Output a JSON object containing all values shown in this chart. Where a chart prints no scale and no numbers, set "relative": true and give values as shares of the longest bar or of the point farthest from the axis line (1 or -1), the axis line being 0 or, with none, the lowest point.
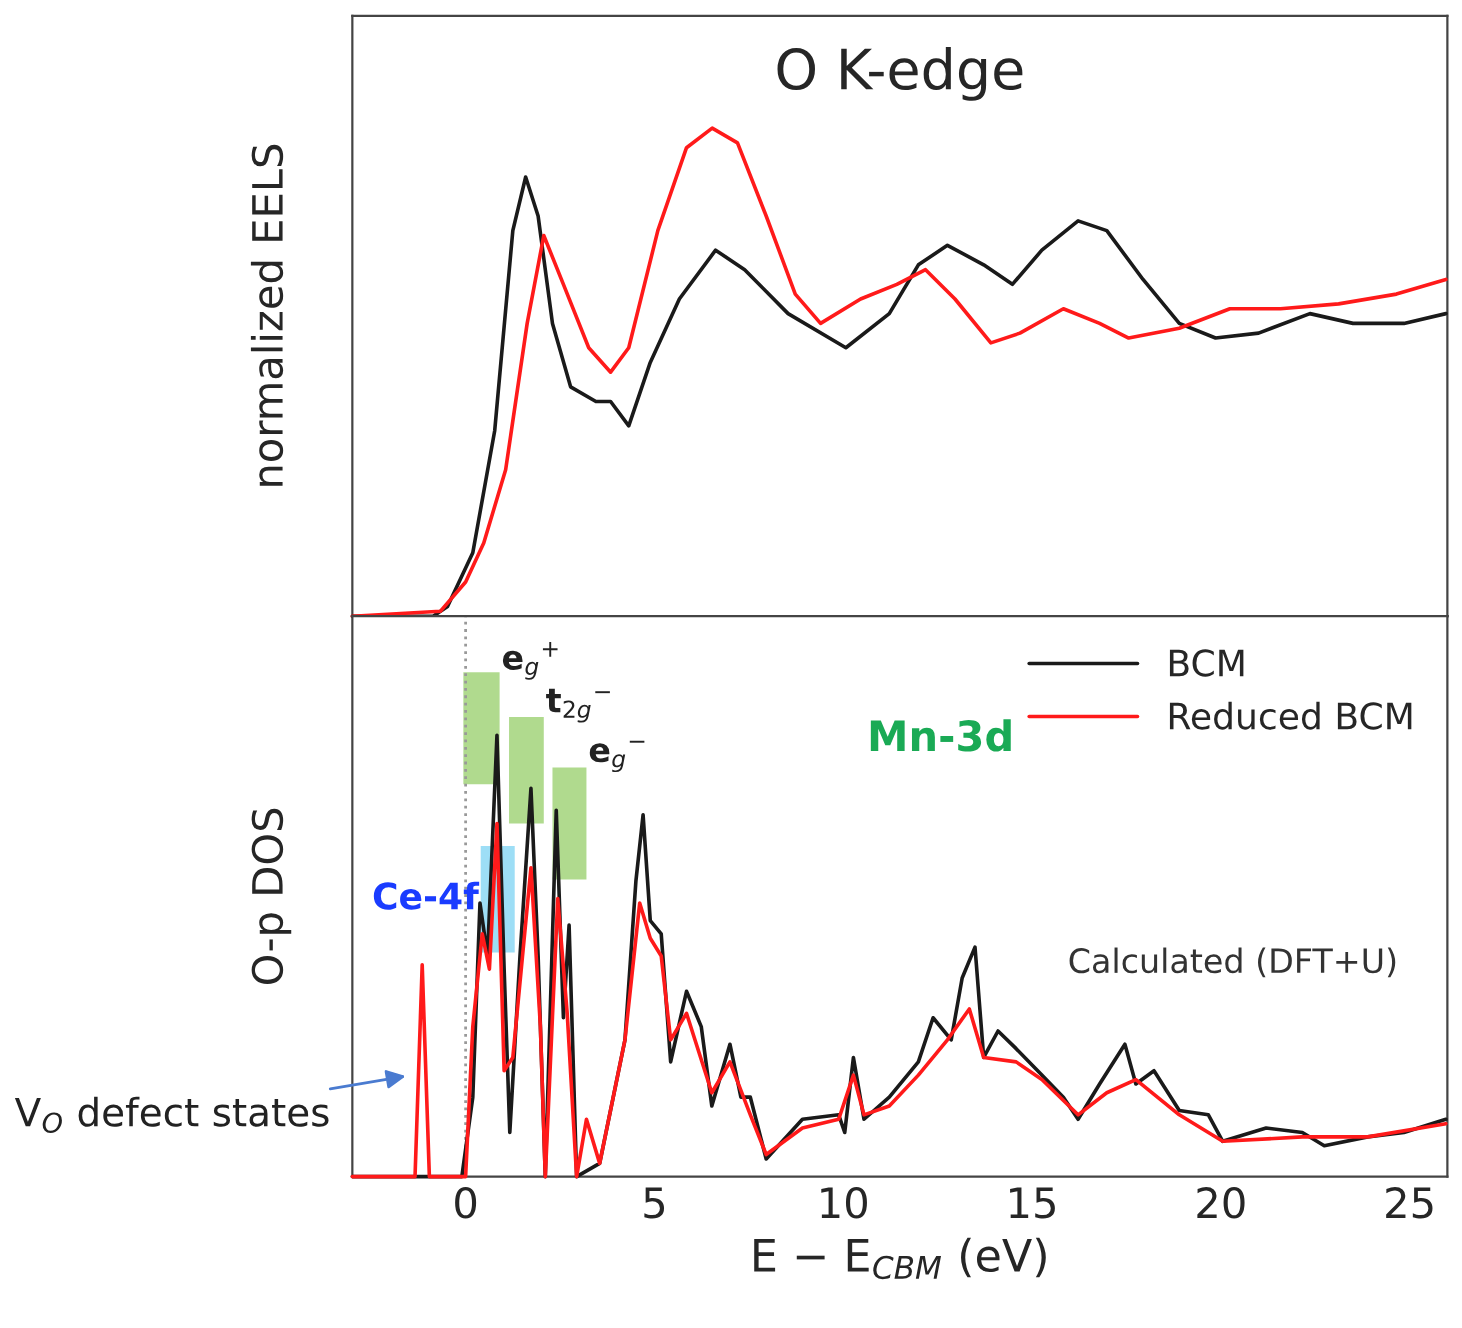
{
  "chart_data": [
    {
      "type": "line",
      "title": "O K-edge",
      "ylabel": "normalized EELS",
      "relative": true,
      "xlim": [
        -3,
        26
      ],
      "tick_labels": false,
      "grid": false,
      "legend": false,
      "series": [
        {
          "color": "#1a1a1a",
          "x": [
            -3,
            -0.86,
            -0.48,
            0.19,
            0.77,
            1.25,
            1.59,
            1.92,
            2.3,
            2.78,
            3.45,
            3.84,
            4.32,
            4.89,
            5.66,
            6.62,
            7.39,
            8.54,
            10.07,
            11.22,
            11.99,
            12.76,
            13.72,
            14.48,
            15.26,
            16.22,
            16.98,
            17.94,
            18.9,
            19.86,
            21.0,
            22.36,
            23.5,
            24.85,
            25.96
          ],
          "values": [
            0,
            0,
            0.02,
            0.13,
            0.38,
            0.79,
            0.9,
            0.82,
            0.6,
            0.47,
            0.44,
            0.44,
            0.39,
            0.52,
            0.65,
            0.75,
            0.71,
            0.62,
            0.55,
            0.62,
            0.72,
            0.76,
            0.72,
            0.68,
            0.75,
            0.81,
            0.79,
            0.69,
            0.6,
            0.57,
            0.58,
            0.62,
            0.6,
            0.6,
            0.62
          ]
        },
        {
          "color": "#ff1a1a",
          "x": [
            -3,
            -0.67,
            0,
            0.48,
            1.06,
            1.63,
            2.07,
            2.59,
            3.26,
            3.84,
            4.32,
            5.09,
            5.85,
            6.53,
            7.2,
            7.96,
            8.73,
            9.4,
            10.46,
            11.42,
            12.18,
            12.96,
            13.91,
            14.68,
            15.83,
            16.79,
            17.56,
            18.9,
            20.24,
            21.58,
            23.12,
            24.65,
            25.96
          ],
          "values": [
            0,
            0.01,
            0.07,
            0.15,
            0.3,
            0.6,
            0.78,
            0.68,
            0.55,
            0.5,
            0.55,
            0.79,
            0.96,
            1,
            0.97,
            0.82,
            0.66,
            0.6,
            0.65,
            0.68,
            0.71,
            0.65,
            0.56,
            0.58,
            0.63,
            0.6,
            0.57,
            0.59,
            0.63,
            0.63,
            0.64,
            0.66,
            0.69
          ]
        }
      ]
    },
    {
      "type": "line",
      "ylabel": "O-p DOS",
      "xlabel": "E − E$_{CBM}$ (eV)",
      "relative": true,
      "xlim": [
        -3,
        26
      ],
      "xticks": [
        0,
        5,
        10,
        15,
        20,
        25
      ],
      "tick_labels": "x",
      "grid": false,
      "legend": "top right",
      "series": [
        {
          "name": "BCM",
          "color": "#1a1a1a",
          "x": [
            -3,
            -0.1,
            0.19,
            0.38,
            0.58,
            0.83,
            1.02,
            1.17,
            1.44,
            1.73,
            1.92,
            2.11,
            2.4,
            2.59,
            2.74,
            2.94,
            3.55,
            4.22,
            4.51,
            4.7,
            4.89,
            5.18,
            5.43,
            5.85,
            6.24,
            6.52,
            7.0,
            7.29,
            7.54,
            7.96,
            8.92,
            9.88,
            10.04,
            10.27,
            10.55,
            11.22,
            11.99,
            12.38,
            12.86,
            13.15,
            13.49,
            13.72,
            14.1,
            14.58,
            15.26,
            15.83,
            16.22,
            16.79,
            17.46,
            17.75,
            18.23,
            18.9,
            19.67,
            20.05,
            21.2,
            22.16,
            22.74,
            23.89,
            24.85,
            25.96
          ],
          "values": [
            0,
            0,
            0.18,
            0.62,
            0.5,
            1,
            0.47,
            0.1,
            0.5,
            0.88,
            0.5,
            0,
            0.83,
            0.36,
            0.57,
            0,
            0.03,
            0.31,
            0.67,
            0.82,
            0.58,
            0.55,
            0.26,
            0.42,
            0.34,
            0.16,
            0.3,
            0.18,
            0.18,
            0.04,
            0.13,
            0.14,
            0.1,
            0.27,
            0.13,
            0.18,
            0.26,
            0.36,
            0.31,
            0.45,
            0.52,
            0.27,
            0.33,
            0.29,
            0.23,
            0.18,
            0.13,
            0.21,
            0.3,
            0.21,
            0.24,
            0.15,
            0.14,
            0.08,
            0.11,
            0.1,
            0.07,
            0.09,
            0.1,
            0.13
          ]
        },
        {
          "name": "Reduced BCM",
          "color": "#ff1a1a",
          "x": [
            -3,
            -1.73,
            -1.34,
            -1.15,
            -0.96,
            0,
            0.19,
            0.44,
            0.63,
            0.83,
            1.02,
            1.25,
            1.73,
            1.98,
            2.11,
            2.44,
            2.69,
            2.94,
            3.2,
            3.55,
            4.22,
            4.61,
            4.89,
            5.18,
            5.43,
            5.85,
            6.52,
            7.0,
            7.54,
            7.96,
            8.92,
            9.88,
            10.27,
            10.55,
            11.22,
            11.99,
            12.76,
            13.34,
            13.72,
            14.58,
            15.26,
            16.22,
            16.98,
            17.75,
            18.9,
            20.05,
            22.16,
            23.89,
            25.96
          ],
          "values": [
            0,
            0,
            0,
            0.48,
            0,
            0,
            0.34,
            0.55,
            0.47,
            0.8,
            0.24,
            0.27,
            0.7,
            0.34,
            0,
            0.63,
            0.37,
            0,
            0.13,
            0.03,
            0.31,
            0.62,
            0.54,
            0.5,
            0.31,
            0.37,
            0.19,
            0.26,
            0.14,
            0.05,
            0.11,
            0.13,
            0.23,
            0.14,
            0.16,
            0.23,
            0.31,
            0.38,
            0.27,
            0.26,
            0.22,
            0.14,
            0.19,
            0.22,
            0.14,
            0.08,
            0.09,
            0.09,
            0.12
          ]
        }
      ],
      "ref_lines": [
        {
          "axis": "x",
          "value": 0,
          "color": "#999999",
          "line_style": "dotted"
        }
      ],
      "bands": [
        {
          "axis": "x",
          "from": -0.06,
          "to": 0.9,
          "label": "e$_{g}$$^{+}$",
          "color": "#7cc242"
        },
        {
          "axis": "x",
          "from": 1.15,
          "to": 2.07,
          "label": "t$_{2g}$$^{−}$",
          "color": "#7cc242"
        },
        {
          "axis": "x",
          "from": 2.3,
          "to": 3.2,
          "label": "e$_{g}$$^{−}$",
          "color": "#7cc242"
        },
        {
          "axis": "x",
          "from": 0.4,
          "to": 1.3,
          "label": "Ce-4f",
          "color": "#5bc8f0"
        }
      ],
      "annotations": [
        {
          "text": "Mn-3d"
        },
        {
          "text": "Calculated (DFT+U)"
        },
        {
          "text": "V$_{O}$ defect states",
          "x": -1.44,
          "y": 0.23
        }
      ]
    }
  ]
}
